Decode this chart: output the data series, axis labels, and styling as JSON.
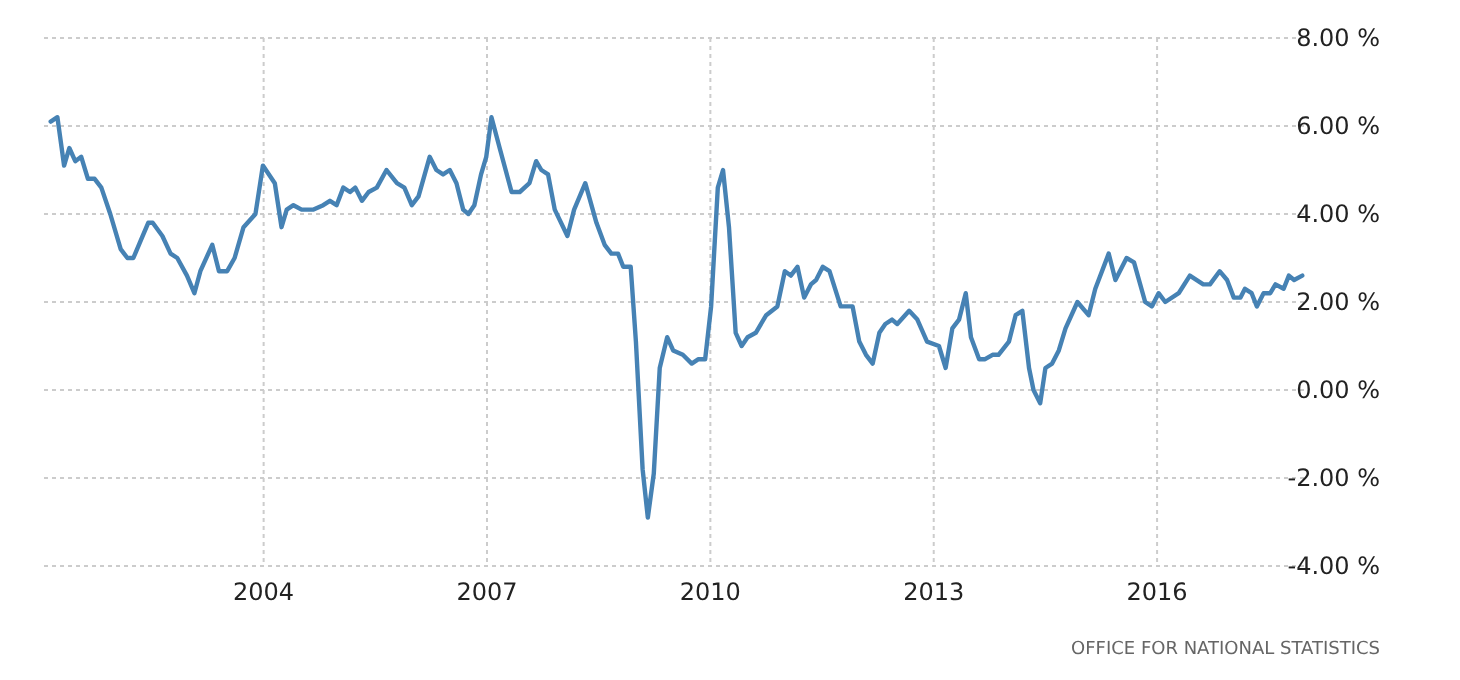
{
  "chart_data": {
    "type": "line",
    "x": [
      2001.14,
      2001.23,
      2001.32,
      2001.39,
      2001.47,
      2001.55,
      2001.64,
      2001.73,
      2001.82,
      2001.94,
      2002.08,
      2002.17,
      2002.25,
      2002.35,
      2002.45,
      2002.51,
      2002.64,
      2002.75,
      2002.84,
      2002.97,
      2003.07,
      2003.15,
      2003.31,
      2003.4,
      2003.51,
      2003.61,
      2003.73,
      2003.89,
      2003.99,
      2004.15,
      2004.24,
      2004.31,
      2004.4,
      2004.51,
      2004.67,
      2004.8,
      2004.89,
      2004.98,
      2005.07,
      2005.16,
      2005.23,
      2005.32,
      2005.41,
      2005.52,
      2005.65,
      2005.79,
      2005.89,
      2005.99,
      2006.08,
      2006.23,
      2006.32,
      2006.41,
      2006.5,
      2006.59,
      2006.68,
      2006.75,
      2006.83,
      2006.92,
      2006.99,
      2007.06,
      2007.17,
      2007.33,
      2007.44,
      2007.57,
      2007.66,
      2007.73,
      2007.82,
      2007.91,
      2008.08,
      2008.17,
      2008.32,
      2008.47,
      2008.58,
      2008.67,
      2008.76,
      2008.83,
      2008.93,
      2009.0,
      2009.09,
      2009.16,
      2009.24,
      2009.32,
      2009.42,
      2009.5,
      2009.63,
      2009.75,
      2009.84,
      2009.93,
      2010.01,
      2010.1,
      2010.17,
      2010.25,
      2010.34,
      2010.42,
      2010.5,
      2010.61,
      2010.75,
      2010.9,
      2011.0,
      2011.08,
      2011.17,
      2011.26,
      2011.35,
      2011.42,
      2011.51,
      2011.6,
      2011.75,
      2011.91,
      2012.0,
      2012.09,
      2012.18,
      2012.27,
      2012.35,
      2012.44,
      2012.51,
      2012.67,
      2012.78,
      2012.91,
      2013.07,
      2013.16,
      2013.25,
      2013.34,
      2013.43,
      2013.5,
      2013.61,
      2013.69,
      2013.79,
      2013.87,
      2014.01,
      2014.1,
      2014.19,
      2014.28,
      2014.34,
      2014.43,
      2014.5,
      2014.59,
      2014.68,
      2014.77,
      2014.93,
      2015.08,
      2015.17,
      2015.35,
      2015.44,
      2015.59,
      2015.69,
      2015.84,
      2015.93,
      2016.02,
      2016.11,
      2016.29,
      2016.44,
      2016.62,
      2016.71,
      2016.84,
      2016.94,
      2017.03,
      2017.12,
      2017.18,
      2017.27,
      2017.34,
      2017.43,
      2017.52,
      2017.59,
      2017.7,
      2017.77,
      2017.84,
      2017.95
    ],
    "series": [
      {
        "color": "#4682b4",
        "values": [
          6.1,
          6.2,
          5.1,
          5.5,
          5.2,
          5.3,
          4.8,
          4.8,
          4.6,
          4.0,
          3.2,
          3.0,
          3.0,
          3.4,
          3.8,
          3.8,
          3.5,
          3.1,
          3.0,
          2.6,
          2.2,
          2.7,
          3.3,
          2.7,
          2.7,
          3.0,
          3.7,
          4.0,
          5.1,
          4.7,
          3.7,
          4.1,
          4.2,
          4.1,
          4.1,
          4.2,
          4.3,
          4.2,
          4.6,
          4.5,
          4.6,
          4.3,
          4.5,
          4.6,
          5.0,
          4.7,
          4.6,
          4.2,
          4.4,
          5.3,
          5.0,
          4.9,
          5.0,
          4.7,
          4.1,
          4.0,
          4.2,
          4.9,
          5.3,
          6.2,
          5.5,
          4.5,
          4.5,
          4.7,
          5.2,
          5.0,
          4.9,
          4.1,
          3.5,
          4.1,
          4.7,
          3.8,
          3.3,
          3.1,
          3.1,
          2.8,
          2.8,
          1.1,
          -1.8,
          -2.9,
          -1.9,
          0.5,
          1.2,
          0.9,
          0.8,
          0.6,
          0.7,
          0.7,
          1.9,
          4.6,
          5.0,
          3.7,
          1.3,
          1.0,
          1.2,
          1.3,
          1.7,
          1.9,
          2.7,
          2.6,
          2.8,
          2.1,
          2.4,
          2.5,
          2.8,
          2.7,
          1.9,
          1.9,
          1.1,
          0.8,
          0.6,
          1.3,
          1.5,
          1.6,
          1.5,
          1.8,
          1.6,
          1.1,
          1.0,
          0.5,
          1.4,
          1.6,
          2.2,
          1.2,
          0.7,
          0.7,
          0.8,
          0.8,
          1.1,
          1.7,
          1.8,
          0.5,
          0.0,
          -0.3,
          0.5,
          0.6,
          0.9,
          1.4,
          2.0,
          1.7,
          2.3,
          3.1,
          2.5,
          3.0,
          2.9,
          2.0,
          1.9,
          2.2,
          2.0,
          2.2,
          2.6,
          2.4,
          2.4,
          2.7,
          2.5,
          2.1,
          2.1,
          2.3,
          2.2,
          1.9,
          2.2,
          2.2,
          2.4,
          2.3,
          2.6,
          2.5,
          2.6
        ]
      }
    ],
    "xlim": [
      2001.05,
      2018
    ],
    "xticks": [
      2004,
      2007,
      2010,
      2013,
      2016
    ],
    "ylim": [
      -4,
      8
    ],
    "yticks": [
      {
        "value": -4,
        "label": "-4.00 %"
      },
      {
        "value": -2,
        "label": "-2.00 %"
      },
      {
        "value": 0,
        "label": "0.00 %"
      },
      {
        "value": 2,
        "label": "2.00 %"
      },
      {
        "value": 4,
        "label": "4.00 %"
      },
      {
        "value": 6,
        "label": "6.00 %"
      },
      {
        "value": 8,
        "label": "8.00 %"
      }
    ],
    "grid": true,
    "line_style": "solid",
    "marker": "none",
    "annotations": [
      "OFFICE FOR NATIONAL STATISTICS"
    ]
  }
}
